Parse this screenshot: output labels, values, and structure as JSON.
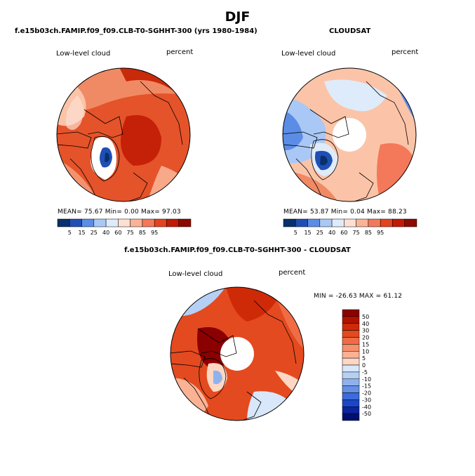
{
  "figure": {
    "title": "DJF"
  },
  "panels": {
    "model": {
      "header": "f.e15b03ch.FAMIP.f09_f09.CLB-T0-SGHHT-300 (yrs 1980-1984)",
      "variable": "Low-level cloud",
      "units": "percent",
      "stats_text": "MEAN=  75.67  Min=   0.00  Max=  97.03"
    },
    "obs": {
      "header": "CLOUDSAT",
      "variable": "Low-level cloud",
      "units": "percent",
      "stats_text": "MEAN=  53.87  Min=   0.04  Max=  88.23"
    },
    "diff": {
      "header": "f.e15b03ch.FAMIP.f09_f09.CLB-T0-SGHHT-300 - CLOUDSAT",
      "variable": "Low-level cloud",
      "units": "percent",
      "stats_text": "MIN = -26.63 MAX =  61.12"
    }
  },
  "colorbars": {
    "abs": {
      "labels": [
        "5",
        "15",
        "25",
        "40",
        "60",
        "75",
        "85",
        "95"
      ],
      "colors": [
        "#08306b",
        "#1f4fb5",
        "#5b8de6",
        "#a9c8f5",
        "#deebfb",
        "#fde0d2",
        "#fbb396",
        "#f4785a",
        "#e3441f",
        "#c21b05",
        "#8c0a00"
      ]
    },
    "diff": {
      "labels": [
        "50",
        "40",
        "30",
        "20",
        "15",
        "10",
        "5",
        "0",
        "-5",
        "-10",
        "-15",
        "-20",
        "-30",
        "-40",
        "-50"
      ],
      "colors": [
        "#8b0000",
        "#b01200",
        "#cf2a08",
        "#e44a1f",
        "#f06c45",
        "#f78f6b",
        "#fbb294",
        "#fdd7c4",
        "#d8e7fa",
        "#b6cff5",
        "#8fb2ee",
        "#6490e5",
        "#3d6bdb",
        "#1c46c7",
        "#0a259e",
        "#001070"
      ]
    }
  }
}
